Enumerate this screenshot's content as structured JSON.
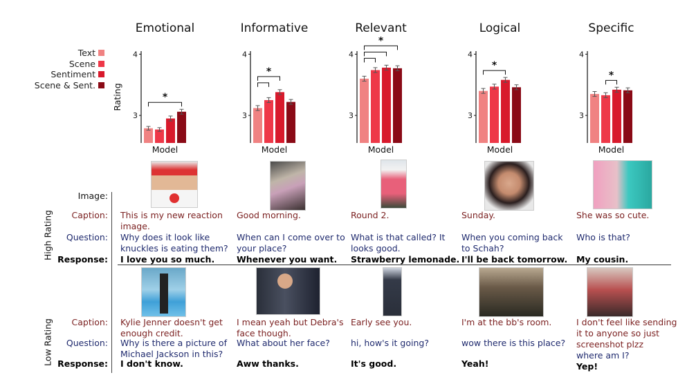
{
  "chart_data": [
    {
      "type": "bar",
      "title": "Emotional",
      "categories": [
        "Text",
        "Scene",
        "Sentiment",
        "Scene & Sent."
      ],
      "values": [
        2.79,
        2.77,
        2.95,
        3.06
      ],
      "errors": [
        0.03,
        0.03,
        0.04,
        0.04
      ],
      "xlabel": "Model",
      "ylabel": "Rating",
      "ylim": [
        2.55,
        4.05
      ],
      "yticks": [
        "4",
        "3"
      ],
      "significance": [
        [
          0,
          3
        ]
      ]
    },
    {
      "type": "bar",
      "title": "Informative",
      "categories": [
        "Text",
        "Scene",
        "Sentiment",
        "Scene & Sent."
      ],
      "values": [
        3.12,
        3.25,
        3.38,
        3.22
      ],
      "errors": [
        0.04,
        0.04,
        0.04,
        0.04
      ],
      "xlabel": "Model",
      "ylabel": "",
      "ylim": [
        2.55,
        4.05
      ],
      "yticks": [
        "4",
        "3"
      ],
      "significance": [
        [
          0,
          1
        ],
        [
          0,
          2
        ]
      ]
    },
    {
      "type": "bar",
      "title": "Relevant",
      "categories": [
        "Text",
        "Scene",
        "Sentiment",
        "Scene & Sent."
      ],
      "values": [
        3.6,
        3.74,
        3.78,
        3.77
      ],
      "errors": [
        0.04,
        0.04,
        0.04,
        0.04
      ],
      "xlabel": "Model",
      "ylabel": "",
      "ylim": [
        2.55,
        4.05
      ],
      "yticks": [
        "4",
        "3"
      ],
      "significance": [
        [
          0,
          1
        ],
        [
          0,
          2
        ],
        [
          0,
          3
        ]
      ]
    },
    {
      "type": "bar",
      "title": "Logical",
      "categories": [
        "Text",
        "Scene",
        "Sentiment",
        "Scene & Sent."
      ],
      "values": [
        3.4,
        3.47,
        3.58,
        3.46
      ],
      "errors": [
        0.04,
        0.04,
        0.04,
        0.04
      ],
      "xlabel": "Model",
      "ylabel": "",
      "ylim": [
        2.55,
        4.05
      ],
      "yticks": [
        "4",
        "3"
      ],
      "significance": [
        [
          0,
          2
        ]
      ]
    },
    {
      "type": "bar",
      "title": "Specific",
      "categories": [
        "Text",
        "Scene",
        "Sentiment",
        "Scene & Sent."
      ],
      "values": [
        3.35,
        3.33,
        3.42,
        3.41
      ],
      "errors": [
        0.04,
        0.04,
        0.04,
        0.04
      ],
      "xlabel": "Model",
      "ylabel": "",
      "ylim": [
        2.55,
        4.05
      ],
      "yticks": [
        "4",
        "3"
      ],
      "significance": [
        [
          1,
          2
        ]
      ]
    }
  ],
  "legend": {
    "entries": [
      "Text",
      "Scene",
      "Sentiment",
      "Scene & Sent."
    ],
    "colors": [
      "#f08282",
      "#ee3848",
      "#d81a2c",
      "#8a0a16"
    ]
  },
  "significance_marker": "*",
  "row_labels": {
    "image": "Image:",
    "caption": "Caption:",
    "question": "Question:",
    "response": "Response:",
    "high": "High Rating",
    "low": "Low Rating"
  },
  "high": [
    {
      "image": "person-red-cap",
      "caption": "This is my new reaction image.",
      "question": "Why does it look like knuckles is eating them?",
      "response": "I love you so much."
    },
    {
      "image": "mirror-selfie",
      "caption": "Good morning.",
      "question": "When can I come over to your place?",
      "response": "Whenever you want."
    },
    {
      "image": "pink-drink-cup",
      "caption": "Round 2.",
      "question": "What is that called? It looks good.",
      "response": "Strawberry lemonade."
    },
    {
      "image": "woman-selfie",
      "caption": "Sunday.",
      "question": "When you coming back to Schah?",
      "response": "I'll be back tomorrow."
    },
    {
      "image": "colorful-hair-friends",
      "caption": "She was so cute.",
      "question": "Who is that?",
      "response": "My cousin."
    }
  ],
  "low": [
    {
      "image": "pool-woman",
      "caption": "Kylie Jenner doesn't get enough credit.",
      "question": "Why is there a picture of Michael Jackson in this?",
      "response": "I don't know."
    },
    {
      "image": "police-officer",
      "caption": "I mean yeah but Debra's face though.",
      "question": "What about her face?",
      "response": "Aww thanks."
    },
    {
      "image": "standing-man",
      "caption": "Early see you.",
      "question": "hi, how's it going?",
      "response": "It's good."
    },
    {
      "image": "group-party",
      "caption": "I'm at the bb's room.",
      "question": "wow there is this place?",
      "response": "Yeah!"
    },
    {
      "image": "group-photo",
      "caption": "I don't feel like sending it to anyone so just screenshot plzz",
      "question": "where am I?",
      "response": "Yep!"
    }
  ]
}
